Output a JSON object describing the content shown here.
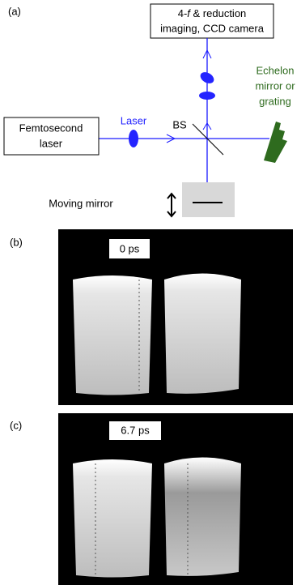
{
  "panel_a": {
    "label": "(a)",
    "camera": {
      "line1": [
        "4-",
        "f",
        " & reduction"
      ],
      "line2": "imaging, CCD camera"
    },
    "echelon": [
      "Echelon",
      "mirror or",
      "grating"
    ],
    "source": [
      "Femtosecond",
      "laser"
    ],
    "laser": "Laser",
    "splitter": "BS",
    "moving_mirror": "Moving mirror"
  },
  "panel_b": {
    "label": "(b)",
    "time": "0 ps"
  },
  "panel_c": {
    "label": "(c)",
    "time": "6.7 ps"
  }
}
